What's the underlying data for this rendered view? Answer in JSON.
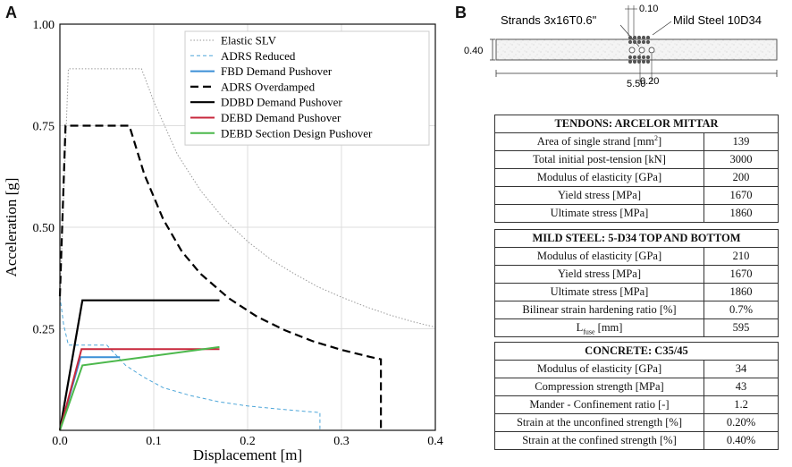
{
  "panel_labels": {
    "a": "A",
    "b": "B"
  },
  "chart_data": {
    "type": "line",
    "xlabel": "Displacement [m]",
    "ylabel": "Acceleration [g]",
    "xlim": [
      0,
      0.4
    ],
    "ylim": [
      0,
      1.0
    ],
    "xticks": [
      "0.0",
      "0.1",
      "0.2",
      "0.3",
      "0.4"
    ],
    "xtick_values": [
      0,
      0.1,
      0.2,
      0.3,
      0.4
    ],
    "yticks": [
      "0.25",
      "0.50",
      "0.75",
      "1.00"
    ],
    "ytick_values": [
      0.25,
      0.5,
      0.75,
      1.0
    ],
    "grid": true,
    "legend_position": "top-right",
    "series": [
      {
        "name": "Elastic SLV",
        "color": "#9a9a9a",
        "style": "dotted",
        "width": 1,
        "x": [
          0.0,
          0.009,
          0.087,
          0.1,
          0.125,
          0.15,
          0.175,
          0.2,
          0.225,
          0.25,
          0.275,
          0.3,
          0.325,
          0.35,
          0.375,
          0.4
        ],
        "y": [
          0.33,
          0.89,
          0.89,
          0.81,
          0.68,
          0.59,
          0.52,
          0.465,
          0.42,
          0.385,
          0.353,
          0.328,
          0.305,
          0.285,
          0.268,
          0.254
        ]
      },
      {
        "name": "ADRS Reduced",
        "color": "#4da6d9",
        "style": "dashed-fine",
        "width": 1,
        "x": [
          0.0,
          0.004,
          0.009,
          0.05,
          0.07,
          0.09,
          0.11,
          0.14,
          0.17,
          0.2,
          0.23,
          0.26,
          0.275,
          0.277,
          0.277
        ],
        "y": [
          0.33,
          0.26,
          0.21,
          0.21,
          0.16,
          0.13,
          0.105,
          0.085,
          0.07,
          0.06,
          0.053,
          0.047,
          0.044,
          0.044,
          0.0
        ]
      },
      {
        "name": "FBD Demand Pushover",
        "color": "#3a8fd6",
        "style": "solid",
        "width": 2,
        "x": [
          0.0,
          0.022,
          0.064
        ],
        "y": [
          0.0,
          0.18,
          0.18
        ]
      },
      {
        "name": "ADRS Overdamped",
        "color": "#000000",
        "style": "dashed",
        "width": 2.2,
        "x": [
          0.0,
          0.006,
          0.074,
          0.09,
          0.11,
          0.13,
          0.15,
          0.18,
          0.21,
          0.24,
          0.27,
          0.3,
          0.33,
          0.342,
          0.342
        ],
        "y": [
          0.33,
          0.75,
          0.75,
          0.63,
          0.52,
          0.44,
          0.385,
          0.325,
          0.28,
          0.246,
          0.219,
          0.198,
          0.181,
          0.175,
          0.0
        ]
      },
      {
        "name": "DDBD Demand Pushover",
        "color": "#000000",
        "style": "solid",
        "width": 2.2,
        "x": [
          0.0,
          0.024,
          0.17
        ],
        "y": [
          0.0,
          0.32,
          0.32
        ]
      },
      {
        "name": "DEBD Demand Pushover",
        "color": "#c8283c",
        "style": "solid",
        "width": 2,
        "x": [
          0.0,
          0.023,
          0.17
        ],
        "y": [
          0.0,
          0.2,
          0.2
        ]
      },
      {
        "name": "DEBD Section Design Pushover",
        "color": "#4cb84c",
        "style": "solid",
        "width": 2,
        "x": [
          0.0,
          0.024,
          0.17
        ],
        "y": [
          0.0,
          0.16,
          0.205
        ]
      }
    ]
  },
  "section": {
    "strands_label": "Strands 3x16T0.6\"",
    "steel_label": "Mild Steel 10D34",
    "dim_top": "0.10",
    "dim_height": "0.40",
    "dim_bottom": "0.20",
    "dim_width": "5.50"
  },
  "tendons": {
    "title": "TENDONS: ARCELOR MITTAR",
    "rows": [
      {
        "label_pre": "Area of single strand [mm",
        "sup": "2",
        "label_post": "]",
        "value": "139"
      },
      {
        "label": "Total initial post-tension [kN]",
        "value": "3000"
      },
      {
        "label": "Modulus of elasticity [GPa]",
        "value": "200"
      },
      {
        "label": "Yield stress [MPa]",
        "value": "1670"
      },
      {
        "label": "Ultimate stress [MPa]",
        "value": "1860"
      }
    ]
  },
  "mild_steel": {
    "title": "MILD STEEL: 5-D34 TOP AND BOTTOM",
    "rows": [
      {
        "label": "Modulus of elasticity [GPa]",
        "value": "210"
      },
      {
        "label": "Yield stress [MPa]",
        "value": "1670"
      },
      {
        "label": "Ultimate stress [MPa]",
        "value": "1860"
      },
      {
        "label": "Bilinear strain hardening ratio [%]",
        "value": "0.7%"
      },
      {
        "label_pre": "L",
        "sub": "fuse",
        "label_post": " [mm]",
        "value": "595"
      }
    ]
  },
  "concrete": {
    "title": "CONCRETE: C35/45",
    "rows": [
      {
        "label": "Modulus of elasticity [GPa]",
        "value": "34"
      },
      {
        "label": "Compression strength [MPa]",
        "value": "43"
      },
      {
        "label": "Mander - Confinement ratio [-]",
        "value": "1.2"
      },
      {
        "label": "Strain at the unconfined strength [%]",
        "value": "0.20%"
      },
      {
        "label": "Strain at the confined strength [%]",
        "value": "0.40%"
      }
    ]
  }
}
